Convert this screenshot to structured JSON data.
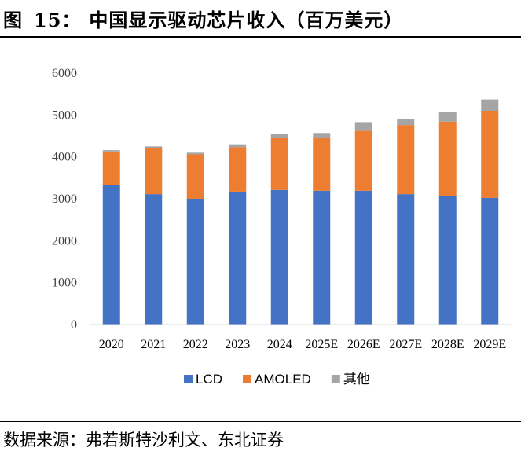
{
  "figure": {
    "label": "图",
    "number": "15：",
    "title": "中国显示驱动芯片收入（百万美元）"
  },
  "source": "数据来源：弗若斯特沙利文、东北证券",
  "chart_data": {
    "type": "bar",
    "stacked": true,
    "title": "中国显示驱动芯片收入（百万美元）",
    "xlabel": "",
    "ylabel": "",
    "ylim": [
      0,
      6000
    ],
    "yticks": [
      "0",
      "1000",
      "2000",
      "3000",
      "4000",
      "5000",
      "6000"
    ],
    "grid": false,
    "legend_position": "bottom",
    "categories": [
      "2020",
      "2021",
      "2022",
      "2023",
      "2024",
      "2025E",
      "2026E",
      "2027E",
      "2028E",
      "2029E"
    ],
    "series": [
      {
        "name": "LCD",
        "color": "#4472C4",
        "values": [
          3320,
          3110,
          3000,
          3170,
          3210,
          3190,
          3190,
          3110,
          3060,
          3020
        ]
      },
      {
        "name": "AMOLED",
        "color": "#ED7D31",
        "values": [
          810,
          1100,
          1060,
          1060,
          1250,
          1270,
          1430,
          1650,
          1780,
          2080
        ]
      },
      {
        "name": "其他",
        "color": "#A5A5A5",
        "values": [
          30,
          40,
          40,
          70,
          90,
          110,
          210,
          150,
          240,
          270
        ]
      }
    ]
  }
}
